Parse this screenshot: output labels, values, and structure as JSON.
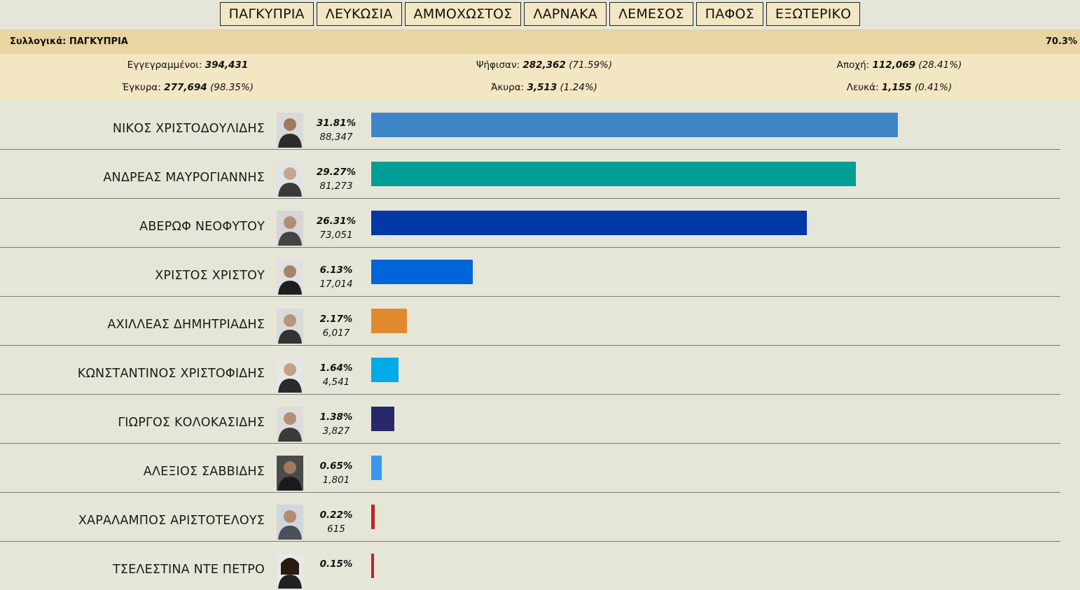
{
  "nav": {
    "tabs": [
      "ΠΑΓΚΥΠΡΙΑ",
      "ΛΕΥΚΩΣΙΑ",
      "ΑΜΜΟΧΩΣΤΟΣ",
      "ΛΑΡΝΑΚΑ",
      "ΛΕΜΕΣΟΣ",
      "ΠΑΦΟΣ",
      "ΕΞΩΤΕΡΙΚΟ"
    ]
  },
  "summary": {
    "title": "Συλλογικά: ΠΑΓΚΥΠΡΙΑ",
    "progress": "70.3%"
  },
  "stats": {
    "registered_label": "Εγγεγραμμένοι:",
    "registered_value": "394,431",
    "voted_label": "Ψήφισαν:",
    "voted_value": "282,362",
    "voted_pct": "(71.59%)",
    "abstention_label": "Αποχή:",
    "abstention_value": "112,069",
    "abstention_pct": "(28.41%)",
    "valid_label": "Έγκυρα:",
    "valid_value": "277,694",
    "valid_pct": "(98.35%)",
    "invalid_label": "Άκυρα:",
    "invalid_value": "3,513",
    "invalid_pct": "(1.24%)",
    "blank_label": "Λευκά:",
    "blank_value": "1,155",
    "blank_pct": "(0.41%)"
  },
  "candidates": [
    {
      "name": "ΝΙΚΟΣ ΧΡΙΣΤΟΔΟΥΛΙΔΗΣ",
      "pct": "31.81%",
      "votes": "88,347",
      "share": 31.81,
      "color": "#3f86c8",
      "avatar": "photo-icon"
    },
    {
      "name": "ΑΝΔΡΕΑΣ ΜΑΥΡΟΓΙΑΝΝΗΣ",
      "pct": "29.27%",
      "votes": "81,273",
      "share": 29.27,
      "color": "#009e96",
      "avatar": "photo-icon"
    },
    {
      "name": "ΑΒΕΡΩΦ ΝΕΟΦΥΤΟΥ",
      "pct": "26.31%",
      "votes": "73,051",
      "share": 26.31,
      "color": "#0038a6",
      "avatar": "photo-icon"
    },
    {
      "name": "ΧΡΙΣΤΟΣ ΧΡΙΣΤΟΥ",
      "pct": "6.13%",
      "votes": "17,014",
      "share": 6.13,
      "color": "#0065d9",
      "avatar": "photo-icon"
    },
    {
      "name": "ΑΧΙΛΛΕΑΣ ΔΗΜΗΤΡΙΑΔΗΣ",
      "pct": "2.17%",
      "votes": "6,017",
      "share": 2.17,
      "color": "#e08a2e",
      "avatar": "photo-icon"
    },
    {
      "name": "ΚΩΝΣΤΑΝΤΙΝΟΣ ΧΡΙΣΤΟΦΙΔΗΣ",
      "pct": "1.64%",
      "votes": "4,541",
      "share": 1.64,
      "color": "#00a9e8",
      "avatar": "photo-icon"
    },
    {
      "name": "ΓΙΩΡΓΟΣ ΚΟΛΟΚΑΣΙΔΗΣ",
      "pct": "1.38%",
      "votes": "3,827",
      "share": 1.38,
      "color": "#27296b",
      "avatar": "photo-icon"
    },
    {
      "name": "ΑΛΕΞΙΟΣ ΣΑΒΒΙΔΗΣ",
      "pct": "0.65%",
      "votes": "1,801",
      "share": 0.65,
      "color": "#3b96ee",
      "avatar": "photo-icon"
    },
    {
      "name": "ΧΑΡΑΛΑΜΠΟΣ ΑΡΙΣΤΟΤΕΛΟΥΣ",
      "pct": "0.22%",
      "votes": "615",
      "share": 0.22,
      "color": "#c52126",
      "avatar": "photo-icon"
    },
    {
      "name": "ΤΣΕΛΕΣΤΙΝΑ ΝΤΕ ΠΕΤΡΟ",
      "pct": "0.15%",
      "votes": "",
      "share": 0.15,
      "color": "#c52126",
      "avatar": "photo-icon"
    }
  ]
}
